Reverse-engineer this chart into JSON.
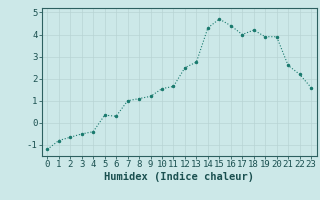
{
  "x": [
    0,
    1,
    2,
    3,
    4,
    5,
    6,
    7,
    8,
    9,
    10,
    11,
    12,
    13,
    14,
    15,
    16,
    17,
    18,
    19,
    20,
    21,
    22,
    23
  ],
  "y": [
    -1.2,
    -0.8,
    -0.65,
    -0.5,
    -0.4,
    0.35,
    0.3,
    1.0,
    1.1,
    1.2,
    1.55,
    1.65,
    2.5,
    2.75,
    4.3,
    4.7,
    4.4,
    4.0,
    4.2,
    3.9,
    3.9,
    2.6,
    2.2,
    1.6
  ],
  "xlabel": "Humidex (Indice chaleur)",
  "ylabel": "",
  "xlim": [
    -0.5,
    23.5
  ],
  "ylim": [
    -1.5,
    5.2
  ],
  "yticks": [
    -1,
    0,
    1,
    2,
    3,
    4,
    5
  ],
  "xticks": [
    0,
    1,
    2,
    3,
    4,
    5,
    6,
    7,
    8,
    9,
    10,
    11,
    12,
    13,
    14,
    15,
    16,
    17,
    18,
    19,
    20,
    21,
    22,
    23
  ],
  "line_color": "#1a7a6e",
  "marker_color": "#1a7a6e",
  "bg_color": "#cce8e8",
  "grid_color": "#b8d4d4",
  "axis_color": "#2d6060",
  "tick_color": "#1a5050",
  "xlabel_fontsize": 7.5,
  "tick_fontsize": 6.5
}
